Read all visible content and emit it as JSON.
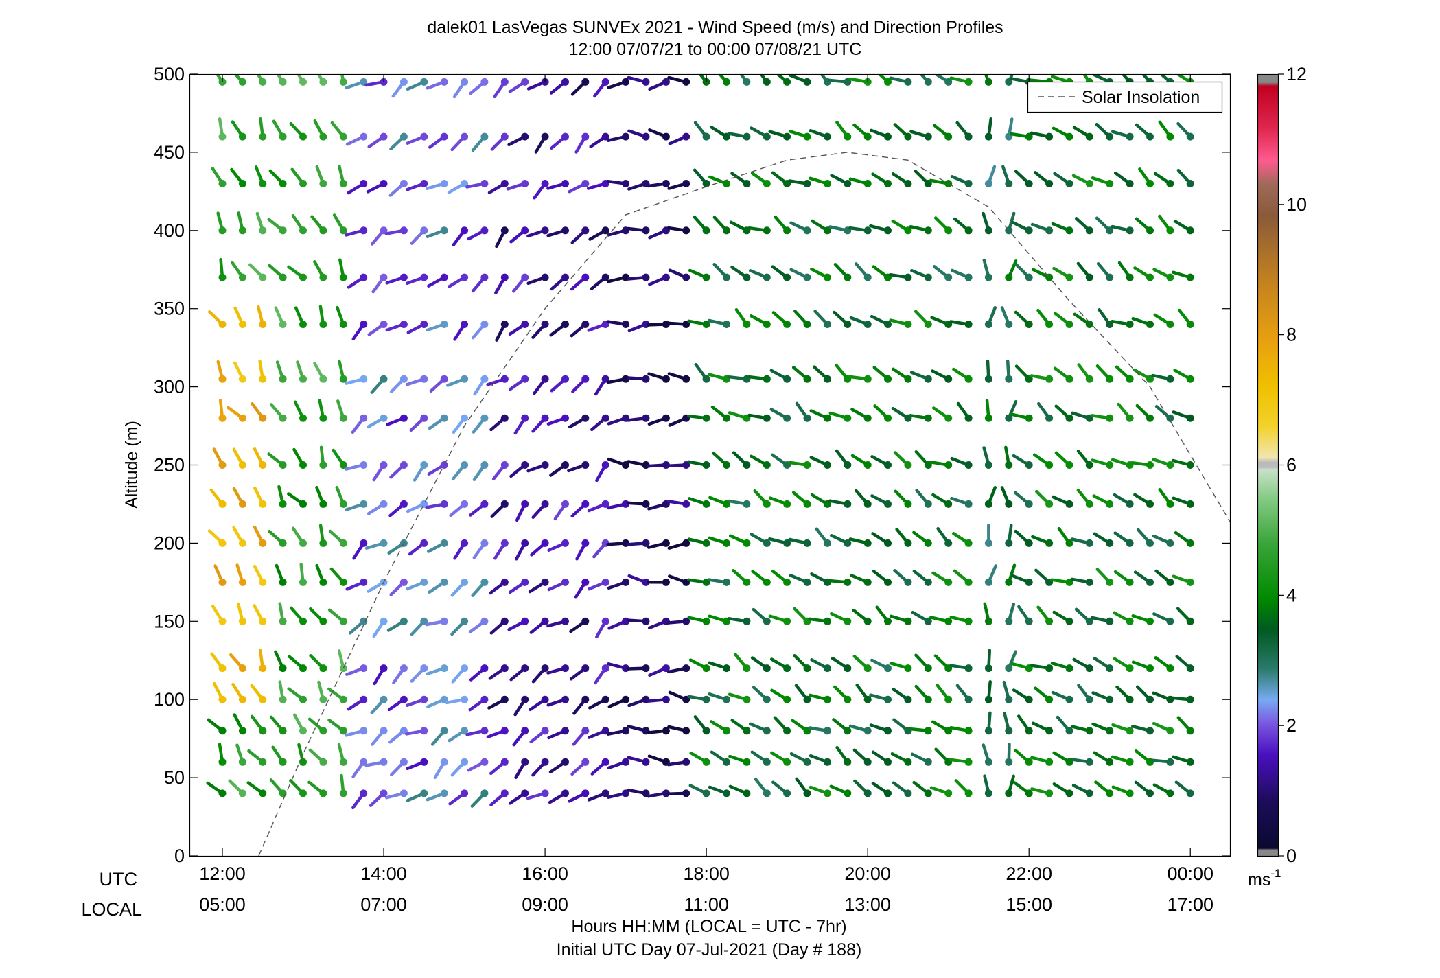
{
  "chart_data": {
    "type": "scatter",
    "title": "dalek01 LasVegas SUNVEx 2021 - Wind Speed (m/s) and Direction Profiles",
    "subtitle": "12:00 07/07/21 to 00:00 07/08/21  UTC",
    "ylabel": "Altitude (m)",
    "xlabel": "Hours HH:MM  (LOCAL = UTC - 7hr)",
    "xlabel2": "Initial UTC Day 07-Jul-2021 (Day # 188)",
    "row_labels": {
      "utc": "UTC",
      "local": "LOCAL"
    },
    "ylim": [
      0,
      500
    ],
    "y_ticks": [
      0,
      50,
      100,
      150,
      200,
      250,
      300,
      350,
      400,
      450,
      500
    ],
    "xlim": [
      11.6,
      24.5
    ],
    "x_ticks": [
      12,
      14,
      16,
      18,
      20,
      22,
      24
    ],
    "x_tick_labels_utc": [
      "12:00",
      "14:00",
      "16:00",
      "18:00",
      "20:00",
      "22:00",
      "00:00"
    ],
    "x_tick_labels_local": [
      "05:00",
      "07:00",
      "09:00",
      "11:00",
      "13:00",
      "15:00",
      "17:00"
    ],
    "legend": {
      "entries": [
        "Solar Insolation"
      ],
      "position": "top-right"
    },
    "colorbar": {
      "min": 0,
      "max": 12,
      "ticks": [
        0,
        2,
        4,
        6,
        8,
        10,
        12
      ],
      "unit_label": "ms",
      "unit_exponent": "-1"
    },
    "solar_insolation": {
      "style": "dashed",
      "color": "#555555",
      "x_hours": [
        12.45,
        13.0,
        14.0,
        15.0,
        16.0,
        17.0,
        18.0,
        19.0,
        19.75,
        20.5,
        21.5,
        22.5,
        23.5,
        24.5
      ],
      "y_altitude": [
        0,
        65,
        175,
        275,
        350,
        410,
        428,
        445,
        450,
        445,
        415,
        355,
        300,
        213
      ]
    },
    "wind_barbs": {
      "description": "Wind speed (color) and direction (stick orientation) profiles every 15 min, 12:00-24:00 UTC",
      "time_start_hour": 12.0,
      "time_step_hours": 0.25,
      "time_count": 49,
      "altitudes_m": [
        40,
        60,
        80,
        100,
        120,
        150,
        175,
        200,
        225,
        250,
        280,
        305,
        340,
        370,
        400,
        430,
        460,
        495
      ],
      "regimes": [
        {
          "hours": [
            12.0,
            13.75
          ],
          "altitude_range": [
            40,
            500
          ],
          "typical_speed_ms": 4.5,
          "typical_direction_deg": 330
        },
        {
          "hours": [
            12.0,
            12.5
          ],
          "altitude_range": [
            100,
            340
          ],
          "typical_speed_ms": 7.5,
          "typical_direction_deg": 330
        },
        {
          "hours": [
            13.75,
            15.5
          ],
          "altitude_range": [
            40,
            500
          ],
          "typical_speed_ms": 2.2,
          "typical_direction_deg": 235
        },
        {
          "hours": [
            15.5,
            17.0
          ],
          "altitude_range": [
            40,
            500
          ],
          "typical_speed_ms": 1.3,
          "typical_direction_deg": 230
        },
        {
          "hours": [
            17.0,
            18.0
          ],
          "altitude_range": [
            40,
            500
          ],
          "typical_speed_ms": 0.8,
          "typical_direction_deg": 270
        },
        {
          "hours": [
            18.0,
            21.5
          ],
          "altitude_range": [
            40,
            500
          ],
          "typical_speed_ms": 3.6,
          "typical_direction_deg": 300
        },
        {
          "hours": [
            21.5,
            21.75
          ],
          "altitude_range": [
            40,
            500
          ],
          "typical_speed_ms": 3.3,
          "typical_direction_deg": 0
        },
        {
          "hours": [
            22.0,
            24.25
          ],
          "altitude_range": [
            40,
            500
          ],
          "typical_speed_ms": 3.7,
          "typical_direction_deg": 300
        }
      ]
    }
  }
}
